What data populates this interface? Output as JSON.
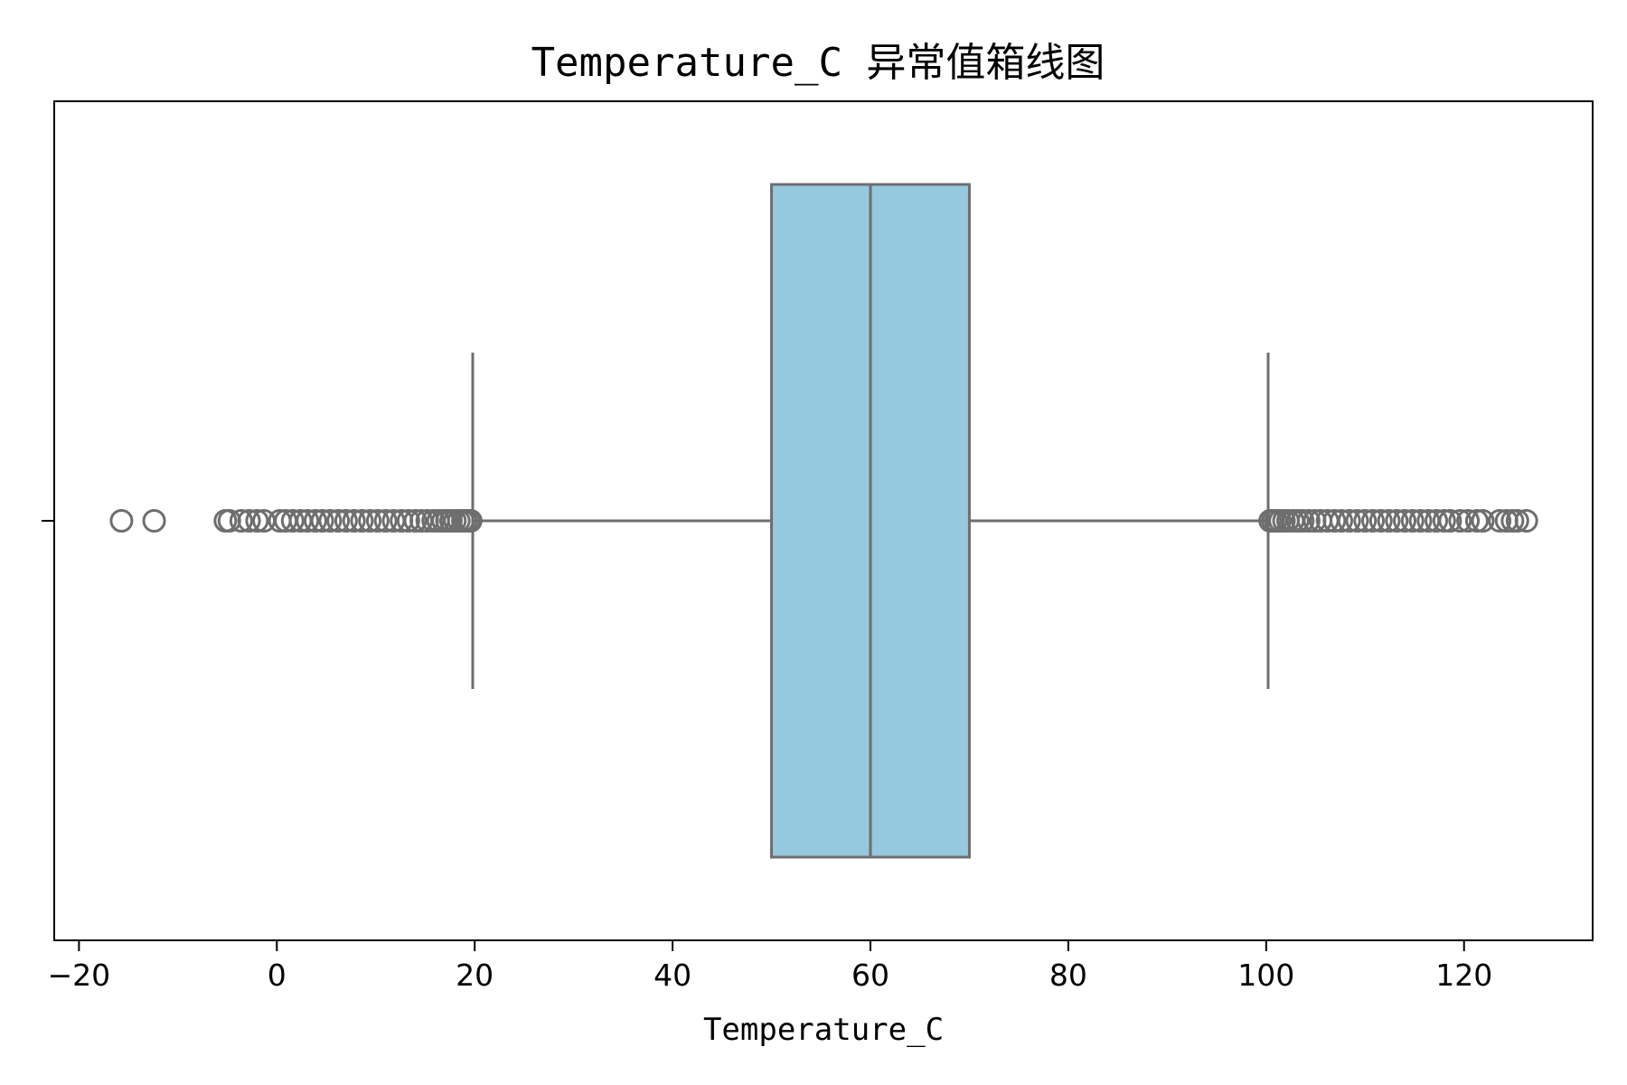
{
  "chart_data": {
    "type": "boxplot",
    "orientation": "horizontal",
    "title": "Temperature_C 异常值箱线图",
    "xlabel": "Temperature_C",
    "ylabel": "",
    "xlim": [
      -22.5,
      133
    ],
    "xticks": [
      -20,
      0,
      20,
      40,
      60,
      80,
      100,
      120
    ],
    "xtick_labels": [
      "−20",
      "0",
      "20",
      "40",
      "60",
      "80",
      "100",
      "120"
    ],
    "grid": false,
    "box": {
      "whisker_low": 19.8,
      "q1": 50,
      "median": 60,
      "q3": 70,
      "whisker_high": 100.2
    },
    "outliers_low": [
      -15.7,
      -12.4,
      -5.2,
      -4.8,
      -3.6,
      -2.8,
      -2.0,
      -1.3,
      0.3,
      0.9,
      1.6,
      2.4,
      3.1,
      3.9,
      4.6,
      5.4,
      6.2,
      7.0,
      7.8,
      8.6,
      9.4,
      10.2,
      11.0,
      11.8,
      12.6,
      13.3,
      14.0,
      14.6,
      15.2,
      15.8,
      16.3,
      16.8,
      17.2,
      17.6,
      18.0,
      18.4,
      18.8,
      19.1,
      19.4,
      19.6
    ],
    "outliers_high": [
      100.4,
      100.7,
      101.0,
      101.4,
      101.8,
      102.2,
      102.7,
      103.2,
      103.7,
      104.3,
      104.9,
      105.5,
      106.2,
      106.9,
      107.6,
      108.4,
      109.2,
      110.0,
      110.8,
      111.6,
      112.4,
      113.2,
      114.0,
      114.8,
      115.6,
      116.4,
      117.2,
      118.0,
      118.6,
      119.6,
      120.4,
      121.3,
      121.9,
      123.6,
      124.3,
      124.9,
      125.4,
      126.3
    ],
    "colors": {
      "box_fill": "#96c8de",
      "line": "#6e6e6e",
      "axis": "#000000"
    }
  }
}
